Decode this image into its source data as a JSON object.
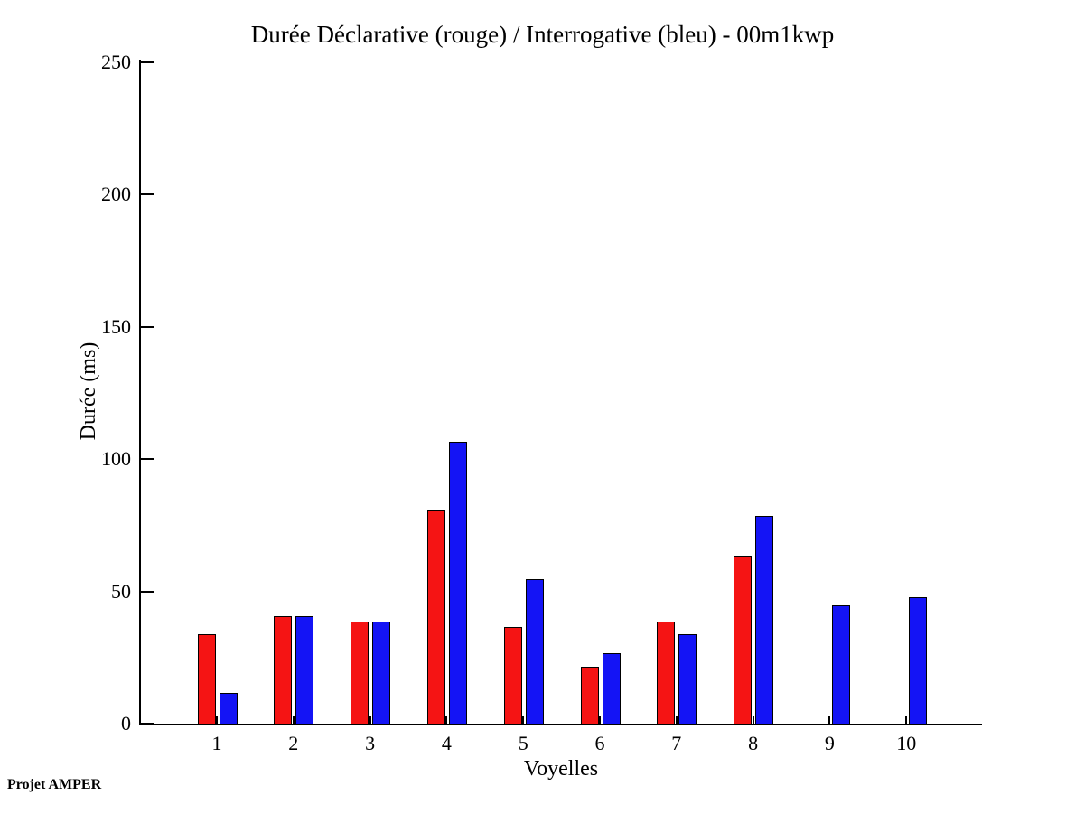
{
  "page": {
    "annotation": "Projet AMPER"
  },
  "chart_data": {
    "type": "bar",
    "title": "Durée Déclarative (rouge) / Interrogative (bleu) - 00m1kwp",
    "xlabel": "Voyelles",
    "ylabel": "Durée (ms)",
    "categories": [
      "1",
      "2",
      "3",
      "4",
      "5",
      "6",
      "7",
      "8",
      "9",
      "10"
    ],
    "series": [
      {
        "name": "Déclarative",
        "color_name": "rouge",
        "color": "#f51414",
        "values": [
          34,
          41,
          39,
          81,
          37,
          22,
          39,
          64,
          0,
          0
        ]
      },
      {
        "name": "Interrogative",
        "color_name": "bleu",
        "color": "#1414f5",
        "values": [
          12,
          41,
          39,
          107,
          55,
          27,
          34,
          79,
          45,
          48
        ]
      }
    ],
    "ylim": [
      0,
      250
    ],
    "yticks": [
      0,
      50,
      100,
      150,
      200,
      250
    ],
    "grid": false,
    "legend_position": "in-title",
    "bar_edge_color": "#000000",
    "background_color": "#ffffff"
  }
}
